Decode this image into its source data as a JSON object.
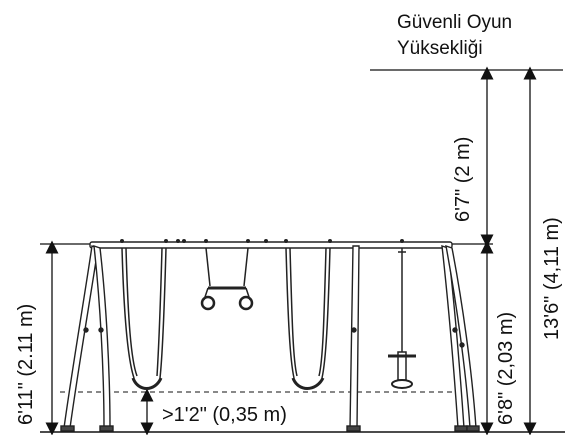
{
  "labels": {
    "safe_zone_line1": "Güvenli Oyun",
    "safe_zone_line2": "Yüksekliği",
    "safe_zone_height": "6'7\" (2 m)",
    "total_height": "13'6\" (4,11 m)",
    "frame_height_right": "6'8\" (2,03 m)",
    "frame_height_left": "6'11\" (2.11 m)",
    "seat_clearance": ">1'2\" (0,35 m)"
  },
  "colors": {
    "line": "#111111",
    "frame_fill": "#ffffff",
    "frame_stroke": "#222222"
  }
}
